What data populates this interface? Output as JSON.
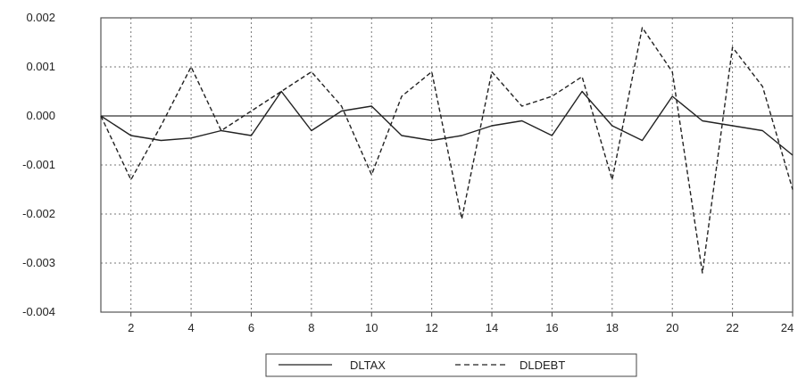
{
  "chart_data": {
    "type": "line",
    "x": [
      1,
      2,
      3,
      4,
      5,
      6,
      7,
      8,
      9,
      10,
      11,
      12,
      13,
      14,
      15,
      16,
      17,
      18,
      19,
      20,
      21,
      22,
      23,
      24
    ],
    "xticks": [
      "2",
      "4",
      "6",
      "8",
      "10",
      "12",
      "14",
      "16",
      "18",
      "20",
      "22",
      "24"
    ],
    "yticks": [
      "0.002",
      "0.001",
      "0.000",
      "-0.001",
      "-0.002",
      "-0.003",
      "-0.004"
    ],
    "xlim": [
      1,
      24
    ],
    "ylim": [
      -0.004,
      0.002
    ],
    "grid": true,
    "legend_position": "bottom-center",
    "series": [
      {
        "name": "DLTAX",
        "style": "solid",
        "values": [
          0.0,
          -0.0004,
          -0.0005,
          -0.00045,
          -0.0003,
          -0.0004,
          0.0005,
          -0.0003,
          0.0001,
          0.0002,
          -0.0004,
          -0.0005,
          -0.0004,
          -0.0002,
          -0.0001,
          -0.0004,
          0.0005,
          -0.0002,
          -0.0005,
          0.0004,
          -0.0001,
          -0.0002,
          -0.0003,
          -0.0008
        ]
      },
      {
        "name": "DLDEBT",
        "style": "dashed",
        "values": [
          0.0,
          -0.0013,
          -0.0002,
          0.001,
          -0.0003,
          0.0001,
          0.0005,
          0.0009,
          0.0002,
          -0.0012,
          0.0004,
          0.0009,
          -0.0021,
          0.0009,
          0.0002,
          0.0004,
          0.0008,
          -0.0013,
          0.0018,
          0.0009,
          -0.0032,
          0.0014,
          0.0006,
          -0.0015
        ]
      }
    ]
  }
}
